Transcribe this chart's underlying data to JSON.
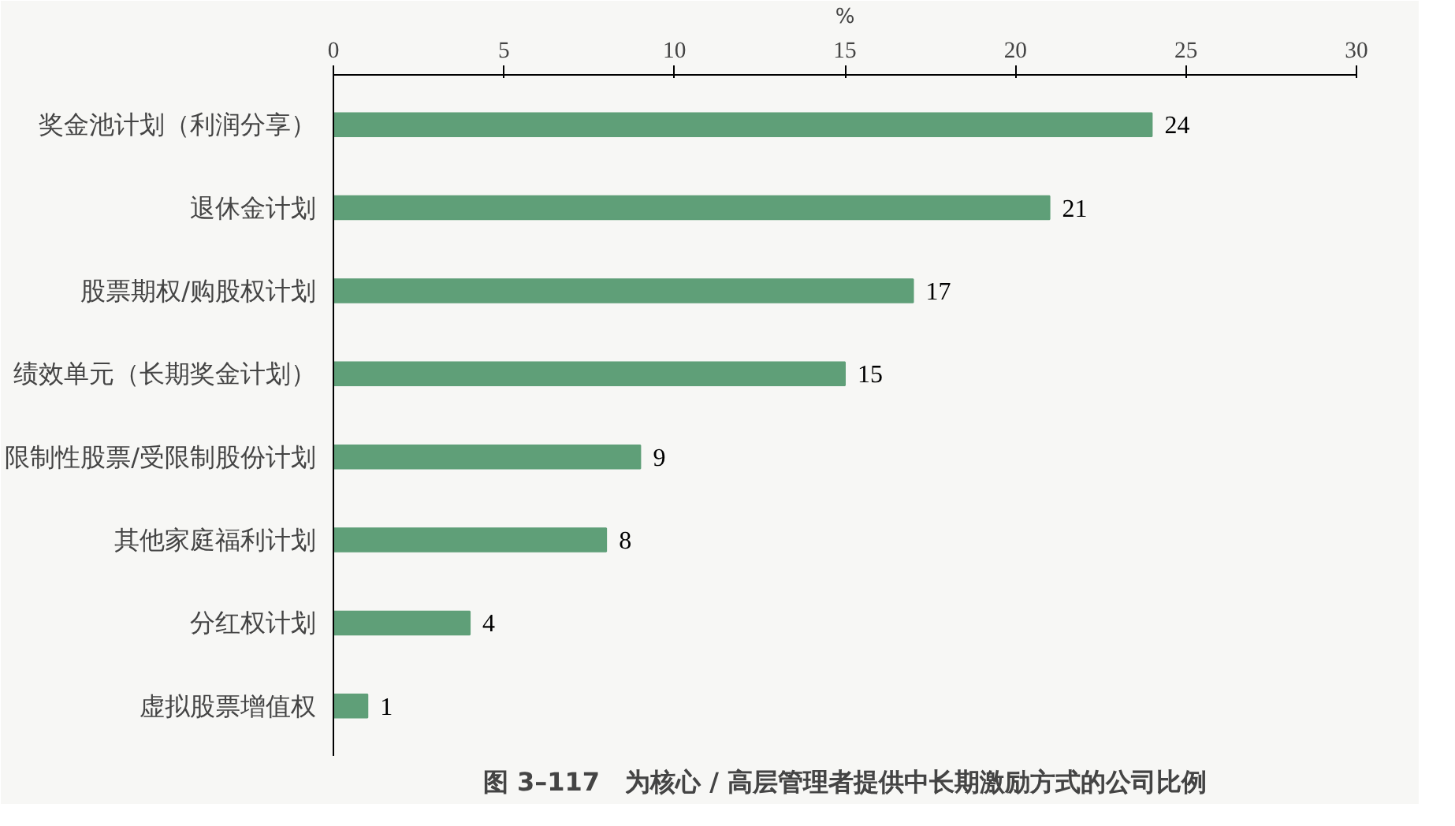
{
  "chart_data": {
    "type": "bar",
    "orientation": "horizontal",
    "title": "图 3–117　为核心 / 高层管理者提供中长期激励方式的公司比例",
    "xlabel": "%",
    "categories": [
      "奖金池计划（利润分享）",
      "退休金计划",
      "股票期权/购股权计划",
      "绩效单元（长期奖金计划）",
      "限制性股票/受限制股份计划",
      "其他家庭福利计划",
      "分红权计划",
      "虚拟股票增值权"
    ],
    "values": [
      24,
      21,
      17,
      15,
      9,
      8,
      4,
      1
    ],
    "color": "#5f9f78",
    "xlim": [
      0,
      30
    ],
    "xticks": [
      0,
      5,
      10,
      15,
      20,
      25,
      30
    ],
    "data_labels": true,
    "grid": false
  }
}
